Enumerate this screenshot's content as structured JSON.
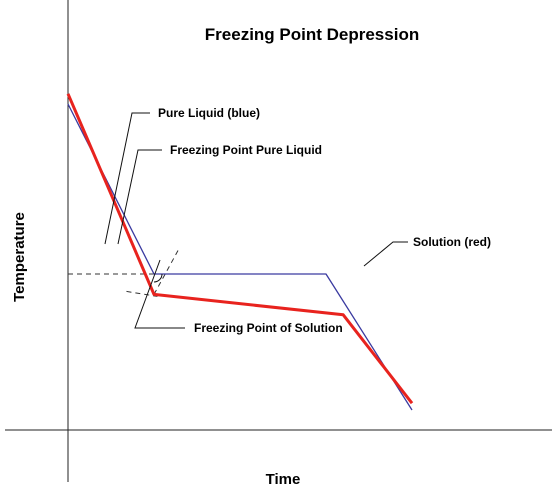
{
  "chart_data": {
    "type": "line",
    "title": "Freezing Point Depression",
    "xlabel": "Time",
    "ylabel": "Temperature",
    "ticks": "none",
    "grid": false,
    "legend": "none",
    "series": [
      {
        "name": "Pure Liquid (blue)",
        "color": "#3a3aa0",
        "points": [
          [
            0,
            100
          ],
          [
            25,
            50
          ],
          [
            75,
            50
          ],
          [
            100,
            10
          ]
        ]
      },
      {
        "name": "Solution (red)",
        "color": "#e8231e",
        "points": [
          [
            0,
            103
          ],
          [
            25,
            44
          ],
          [
            80,
            38
          ],
          [
            100,
            12
          ]
        ]
      }
    ],
    "reference_lines": [
      {
        "role": "freezing point pure liquid",
        "value": 50
      },
      {
        "role": "freezing point of solution",
        "value": 44
      }
    ],
    "annotations": [
      {
        "text": "Pure Liquid (blue)",
        "target": "Pure Liquid (blue)"
      },
      {
        "text": "Freezing Point Pure Liquid",
        "target": "freezing point pure liquid"
      },
      {
        "text": "Solution (red)",
        "target": "Solution (red)"
      },
      {
        "text": "Freezing Point of Solution",
        "target": "freezing point of solution"
      }
    ]
  }
}
